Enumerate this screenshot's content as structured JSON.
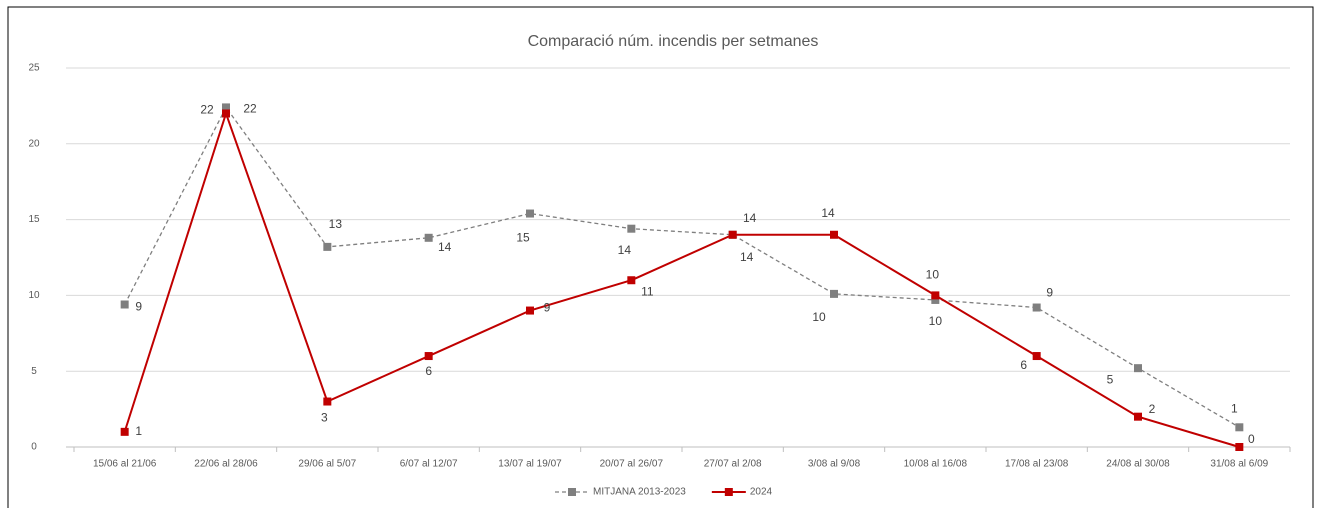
{
  "chart_data": {
    "type": "line",
    "title": "Comparació núm. incendis per setmanes",
    "categories": [
      "15/06 al 21/06",
      "22/06 al 28/06",
      "29/06 al 5/07",
      "6/07 al 12/07",
      "13/07 al 19/07",
      "20/07 al 26/07",
      "27/07 al 2/08",
      "3/08 al 9/08",
      "10/08 al 16/08",
      "17/08 al 23/08",
      "24/08 al 30/08",
      "31/08 al 6/09"
    ],
    "series": [
      {
        "name": "MITJANA 2013-2023",
        "color": "#7f7f7f",
        "dashed": true,
        "values": [
          9.4,
          22.4,
          13.2,
          13.8,
          15.4,
          14.4,
          14,
          10.1,
          9.7,
          9.2,
          5.2,
          1.3
        ],
        "value_labels": [
          "9",
          "22",
          "13",
          "14",
          "15",
          "14",
          "14",
          "10",
          "10",
          "9",
          "5",
          "1"
        ]
      },
      {
        "name": "2024",
        "color": "#c00000",
        "dashed": false,
        "values": [
          1,
          22,
          3,
          6,
          9,
          11,
          14,
          14,
          10,
          6,
          2,
          0
        ]
      }
    ],
    "ylim": [
      0,
      25
    ],
    "yticks": [
      0,
      5,
      10,
      15,
      20,
      25
    ],
    "grid": true,
    "legend": "bottom"
  }
}
